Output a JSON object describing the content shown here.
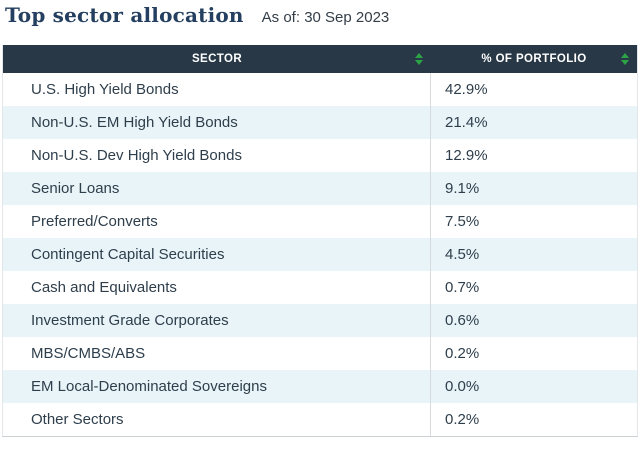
{
  "title": "Top sector allocation",
  "as_of": "As of: 30 Sep 2023",
  "colors": {
    "header_bg": "#283847",
    "alt_row_bg": "#e8f4f8",
    "body_text": "#2e3e4b",
    "title_text": "#243f5f",
    "sort_arrow_green": "#2ca445",
    "column_divider": "#d8dbdd",
    "bottom_border": "#ccd1d4"
  },
  "table": {
    "columns": [
      {
        "label": "SECTOR",
        "sortable": true
      },
      {
        "label": "% OF PORTFOLIO",
        "sortable": true
      }
    ],
    "rows": [
      {
        "sector": "U.S. High Yield Bonds",
        "pct": "42.9%"
      },
      {
        "sector": "Non-U.S. EM High Yield Bonds",
        "pct": "21.4%"
      },
      {
        "sector": "Non-U.S. Dev High Yield Bonds",
        "pct": "12.9%"
      },
      {
        "sector": "Senior Loans",
        "pct": "9.1%"
      },
      {
        "sector": "Preferred/Converts",
        "pct": "7.5%"
      },
      {
        "sector": "Contingent Capital Securities",
        "pct": "4.5%"
      },
      {
        "sector": "Cash and Equivalents",
        "pct": "0.7%"
      },
      {
        "sector": "Investment Grade Corporates",
        "pct": "0.6%"
      },
      {
        "sector": "MBS/CMBS/ABS",
        "pct": "0.2%"
      },
      {
        "sector": "EM Local-Denominated Sovereigns",
        "pct": "0.0%"
      },
      {
        "sector": "Other Sectors",
        "pct": "0.2%"
      }
    ]
  },
  "chart_data": {
    "type": "table",
    "title": "Top sector allocation",
    "subtitle": "As of: 30 Sep 2023",
    "columns": [
      "SECTOR",
      "% OF PORTFOLIO"
    ],
    "categories": [
      "U.S. High Yield Bonds",
      "Non-U.S. EM High Yield Bonds",
      "Non-U.S. Dev High Yield Bonds",
      "Senior Loans",
      "Preferred/Converts",
      "Contingent Capital Securities",
      "Cash and Equivalents",
      "Investment Grade Corporates",
      "MBS/CMBS/ABS",
      "EM Local-Denominated Sovereigns",
      "Other Sectors"
    ],
    "values": [
      42.9,
      21.4,
      12.9,
      9.1,
      7.5,
      4.5,
      0.7,
      0.6,
      0.2,
      0.0,
      0.2
    ],
    "unit": "% of portfolio"
  }
}
